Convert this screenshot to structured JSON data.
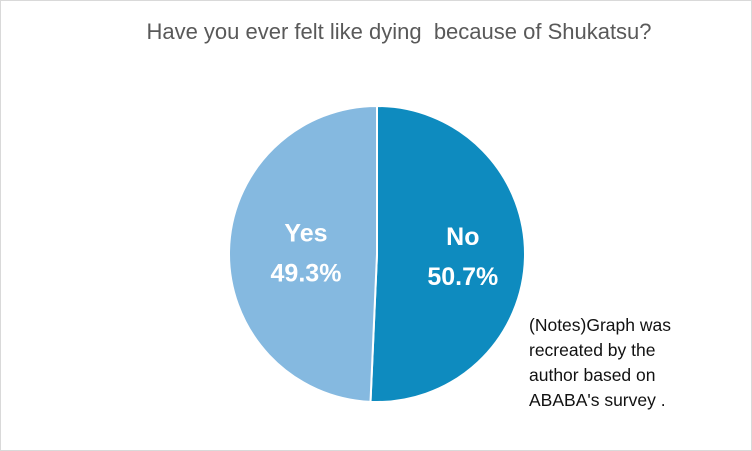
{
  "chart_data": {
    "type": "pie",
    "title": "Have you ever felt like dying  because of Shukatsu?",
    "slices": [
      {
        "label": "No",
        "value": 50.7,
        "value_label": "50.7%",
        "color": "#0e8bbf"
      },
      {
        "label": "Yes",
        "value": 49.3,
        "value_label": "49.3%",
        "color": "#85b9e0"
      }
    ],
    "start": "top",
    "direction": "clockwise",
    "legend": "none"
  },
  "notes": [
    "(Notes)Graph was",
    "recreated by the",
    "author based on",
    "ABABA's survey ."
  ]
}
